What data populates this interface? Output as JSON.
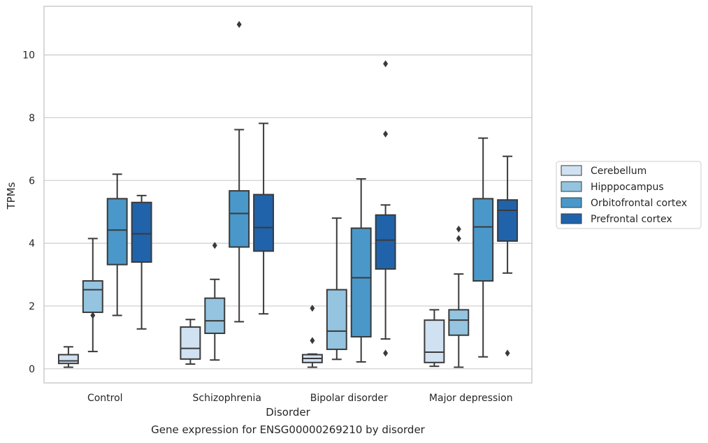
{
  "caption": "Gene expression for ENSG00000269210 by disorder",
  "chart_data": {
    "type": "box",
    "title": "",
    "xlabel": "Disorder",
    "ylabel": "TPMs",
    "categories": [
      "Control",
      "Schizophrenia",
      "Bipolar disorder",
      "Major depression"
    ],
    "ylim": [
      -0.45,
      11.55
    ],
    "yticks": [
      0,
      2,
      4,
      6,
      8,
      10
    ],
    "grid": "horizontal",
    "legend_position": "right",
    "series": [
      {
        "name": "Cerebellum",
        "color": "#d0e1f2",
        "boxes": [
          {
            "whisker_low": 0.05,
            "q1": 0.17,
            "median": 0.25,
            "q3": 0.45,
            "whisker_high": 0.7,
            "outliers": []
          },
          {
            "whisker_low": 0.15,
            "q1": 0.31,
            "median": 0.65,
            "q3": 1.33,
            "whisker_high": 1.57,
            "outliers": []
          },
          {
            "whisker_low": 0.05,
            "q1": 0.2,
            "median": 0.33,
            "q3": 0.45,
            "whisker_high": 0.47,
            "outliers": [
              0.9,
              1.93
            ]
          },
          {
            "whisker_low": 0.08,
            "q1": 0.2,
            "median": 0.53,
            "q3": 1.55,
            "whisker_high": 1.88,
            "outliers": []
          }
        ]
      },
      {
        "name": "Hipppocampus",
        "color": "#94c4df",
        "boxes": [
          {
            "whisker_low": 0.55,
            "q1": 1.8,
            "median": 2.52,
            "q3": 2.8,
            "whisker_high": 4.15,
            "outliers": [
              1.7
            ]
          },
          {
            "whisker_low": 0.28,
            "q1": 1.13,
            "median": 1.53,
            "q3": 2.25,
            "whisker_high": 2.85,
            "outliers": [
              3.93
            ]
          },
          {
            "whisker_low": 0.3,
            "q1": 0.62,
            "median": 1.2,
            "q3": 2.52,
            "whisker_high": 4.8,
            "outliers": []
          },
          {
            "whisker_low": 0.05,
            "q1": 1.07,
            "median": 1.55,
            "q3": 1.88,
            "whisker_high": 3.02,
            "outliers": [
              4.15,
              4.45
            ]
          }
        ]
      },
      {
        "name": "Orbitofrontal cortex",
        "color": "#4a98c9",
        "boxes": [
          {
            "whisker_low": 1.7,
            "q1": 3.32,
            "median": 4.42,
            "q3": 5.42,
            "whisker_high": 6.2,
            "outliers": []
          },
          {
            "whisker_low": 1.5,
            "q1": 3.88,
            "median": 4.95,
            "q3": 5.67,
            "whisker_high": 7.62,
            "outliers": [
              10.97
            ]
          },
          {
            "whisker_low": 0.22,
            "q1": 1.02,
            "median": 2.9,
            "q3": 4.48,
            "whisker_high": 6.05,
            "outliers": []
          },
          {
            "whisker_low": 0.38,
            "q1": 2.8,
            "median": 4.52,
            "q3": 5.42,
            "whisker_high": 7.35,
            "outliers": []
          }
        ]
      },
      {
        "name": "Prefrontal cortex",
        "color": "#2163aa",
        "boxes": [
          {
            "whisker_low": 1.27,
            "q1": 3.4,
            "median": 4.3,
            "q3": 5.3,
            "whisker_high": 5.52,
            "outliers": []
          },
          {
            "whisker_low": 1.75,
            "q1": 3.75,
            "median": 4.5,
            "q3": 5.55,
            "whisker_high": 7.82,
            "outliers": []
          },
          {
            "whisker_low": 0.95,
            "q1": 3.18,
            "median": 4.1,
            "q3": 4.9,
            "whisker_high": 5.22,
            "outliers": [
              0.5,
              7.48,
              9.72
            ]
          },
          {
            "whisker_low": 3.05,
            "q1": 4.07,
            "median": 5.05,
            "q3": 5.38,
            "whisker_high": 6.77,
            "outliers": [
              0.5
            ]
          }
        ]
      }
    ]
  }
}
